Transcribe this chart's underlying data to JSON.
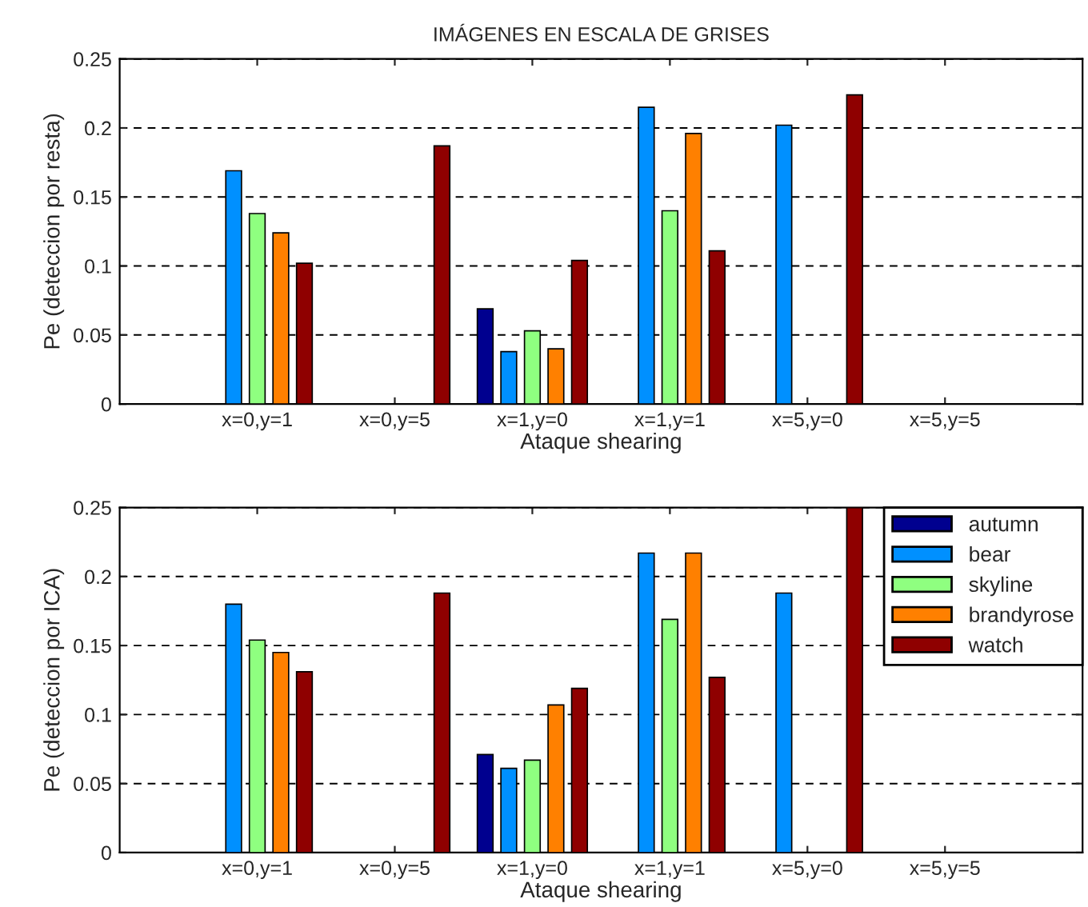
{
  "chart_data": [
    {
      "type": "bar",
      "title": "IMÁGENES EN ESCALA DE GRISES",
      "xlabel": "Ataque shearing",
      "ylabel": "Pe (deteccion por resta)",
      "categories": [
        "x=0,y=1",
        "x=0,y=5",
        "x=1,y=0",
        "x=1,y=1",
        "x=5,y=0",
        "x=5,y=5"
      ],
      "series": [
        {
          "color": "#00008f",
          "values": [
            null,
            null,
            0.069,
            null,
            null,
            null
          ]
        },
        {
          "color": "#0090ff",
          "values": [
            0.169,
            null,
            0.038,
            0.215,
            0.202,
            null
          ]
        },
        {
          "color": "#8fff80",
          "values": [
            0.138,
            null,
            0.053,
            0.14,
            null,
            null
          ]
        },
        {
          "color": "#ff8000",
          "values": [
            0.124,
            null,
            0.04,
            0.196,
            null,
            null
          ]
        },
        {
          "color": "#8f0000",
          "values": [
            0.102,
            0.187,
            0.104,
            0.111,
            0.224,
            null
          ]
        }
      ],
      "ylim": [
        0,
        0.25
      ],
      "yticks": [
        0,
        0.05,
        0.1,
        0.15,
        0.2,
        0.25
      ],
      "grid": "y",
      "line_style": "dashed"
    },
    {
      "type": "bar",
      "xlabel": "Ataque shearing",
      "ylabel": "Pe (deteccion por ICA)",
      "categories": [
        "x=0,y=1",
        "x=0,y=5",
        "x=1,y=0",
        "x=1,y=1",
        "x=5,y=0",
        "x=5,y=5"
      ],
      "series": [
        {
          "name": "autumn",
          "color": "#00008f",
          "values": [
            null,
            null,
            0.071,
            null,
            null,
            null
          ]
        },
        {
          "name": "bear",
          "color": "#0090ff",
          "values": [
            0.18,
            null,
            0.061,
            0.217,
            0.188,
            null
          ]
        },
        {
          "name": "skyline",
          "color": "#8fff80",
          "values": [
            0.154,
            null,
            0.067,
            0.169,
            null,
            null
          ]
        },
        {
          "name": "brandyrose",
          "color": "#ff8000",
          "values": [
            0.145,
            null,
            0.107,
            0.217,
            null,
            null
          ]
        },
        {
          "name": "watch",
          "color": "#8f0000",
          "values": [
            0.131,
            0.188,
            0.119,
            0.127,
            0.25,
            null
          ]
        }
      ],
      "ylim": [
        0,
        0.25
      ],
      "yticks": [
        0,
        0.05,
        0.1,
        0.15,
        0.2,
        0.25
      ],
      "grid": "y",
      "line_style": "dashed",
      "legend": "top right"
    }
  ]
}
